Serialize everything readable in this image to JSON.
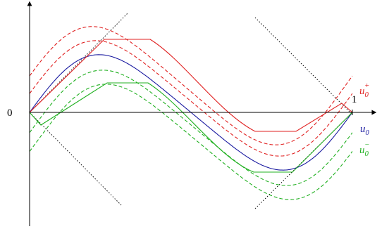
{
  "axes": {
    "origin_label": "0",
    "x_end_label": "1"
  },
  "labels": [
    {
      "base": "u",
      "sub": "0",
      "sup": "+"
    },
    {
      "base": "u",
      "sub": "0"
    },
    {
      "base": "u",
      "sub": "0",
      "sup": "−"
    }
  ]
}
